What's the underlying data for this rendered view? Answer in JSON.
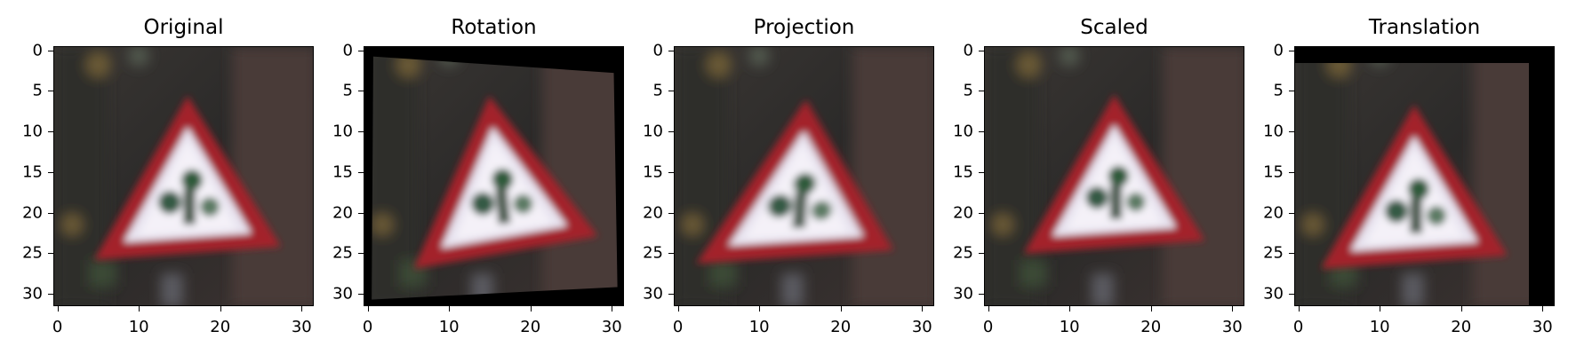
{
  "figure": {
    "panels": [
      {
        "id": "original",
        "title": "Original"
      },
      {
        "id": "rotation",
        "title": "Rotation"
      },
      {
        "id": "projection",
        "title": "Projection"
      },
      {
        "id": "scaled",
        "title": "Scaled"
      },
      {
        "id": "translation",
        "title": "Translation"
      }
    ],
    "axes": {
      "x_ticks": [
        "0",
        "10",
        "20",
        "30"
      ],
      "y_ticks": [
        "0",
        "5",
        "10",
        "15",
        "20",
        "25",
        "30"
      ],
      "range": [
        0,
        31
      ]
    }
  }
}
